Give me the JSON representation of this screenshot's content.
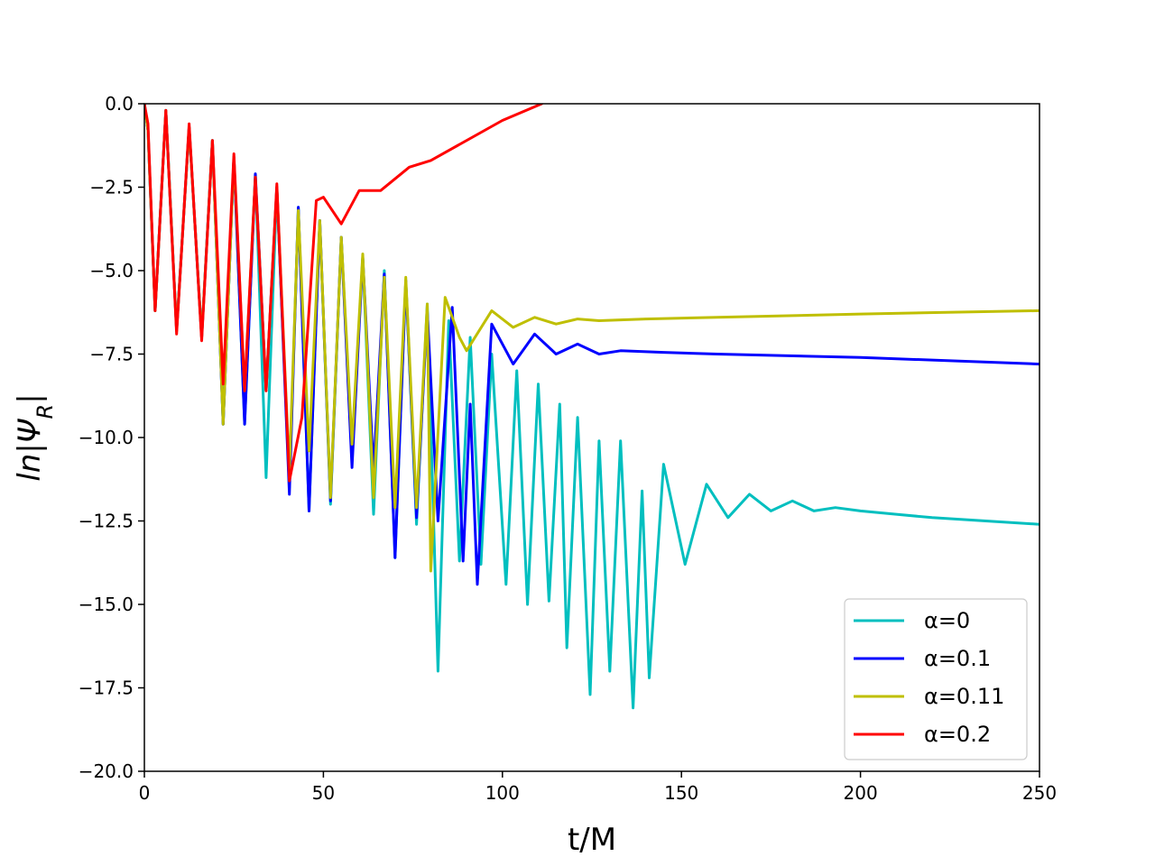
{
  "chart_data": {
    "type": "line",
    "xlabel": "t/M",
    "ylabel": "ln|Ψ_R|",
    "xlim": [
      0,
      250
    ],
    "ylim": [
      -20,
      0
    ],
    "xticks": [
      "0",
      "50",
      "100",
      "150",
      "200",
      "250"
    ],
    "yticks": [
      "0.0",
      "−2.5",
      "−5.0",
      "−7.5",
      "−10.0",
      "−12.5",
      "−15.0",
      "−17.5",
      "−20.0"
    ],
    "grid": false,
    "legend_position": "lower-right",
    "series": [
      {
        "name": "α=0",
        "color": "#00bfbf",
        "points": [
          [
            0,
            0
          ],
          [
            1,
            -0.8
          ],
          [
            3,
            -6.2
          ],
          [
            6,
            -0.2
          ],
          [
            9,
            -6.8
          ],
          [
            12.5,
            -0.7
          ],
          [
            16,
            -7.0
          ],
          [
            19,
            -1.1
          ],
          [
            22,
            -9.6
          ],
          [
            25,
            -1.6
          ],
          [
            28,
            -9.6
          ],
          [
            31,
            -2.1
          ],
          [
            34,
            -11.2
          ],
          [
            37,
            -2.5
          ],
          [
            40.5,
            -11.5
          ],
          [
            43,
            -3.1
          ],
          [
            46,
            -12.2
          ],
          [
            49,
            -3.5
          ],
          [
            52,
            -12.0
          ],
          [
            55,
            -4.0
          ],
          [
            58,
            -10.6
          ],
          [
            61,
            -4.6
          ],
          [
            64,
            -12.3
          ],
          [
            67,
            -5.0
          ],
          [
            70,
            -13.6
          ],
          [
            73,
            -5.3
          ],
          [
            76,
            -12.6
          ],
          [
            79,
            -6.0
          ],
          [
            82,
            -17.0
          ],
          [
            85,
            -6.5
          ],
          [
            88,
            -13.7
          ],
          [
            91,
            -7.0
          ],
          [
            94,
            -13.8
          ],
          [
            97,
            -7.5
          ],
          [
            101,
            -14.4
          ],
          [
            104,
            -8.0
          ],
          [
            107,
            -15.0
          ],
          [
            110,
            -8.4
          ],
          [
            113,
            -14.9
          ],
          [
            116,
            -9.0
          ],
          [
            118,
            -16.3
          ],
          [
            121,
            -9.4
          ],
          [
            124.5,
            -17.7
          ],
          [
            127,
            -10.1
          ],
          [
            130,
            -17.0
          ],
          [
            133,
            -10.1
          ],
          [
            136.5,
            -18.1
          ],
          [
            139,
            -11.6
          ],
          [
            141,
            -17.2
          ],
          [
            145,
            -10.8
          ],
          [
            151,
            -13.8
          ],
          [
            157,
            -11.4
          ],
          [
            163,
            -12.4
          ],
          [
            169,
            -11.7
          ],
          [
            175,
            -12.2
          ],
          [
            181,
            -11.9
          ],
          [
            187,
            -12.2
          ],
          [
            193,
            -12.1
          ],
          [
            200,
            -12.2
          ],
          [
            210,
            -12.3
          ],
          [
            220,
            -12.4
          ],
          [
            235,
            -12.5
          ],
          [
            250,
            -12.6
          ]
        ]
      },
      {
        "name": "α=0.1",
        "color": "#0000ff",
        "points": [
          [
            0,
            0
          ],
          [
            1,
            -0.8
          ],
          [
            3,
            -6.2
          ],
          [
            6,
            -0.2
          ],
          [
            9,
            -6.8
          ],
          [
            12.5,
            -0.7
          ],
          [
            16,
            -7.0
          ],
          [
            19,
            -1.1
          ],
          [
            22,
            -9.6
          ],
          [
            25,
            -1.6
          ],
          [
            28,
            -9.6
          ],
          [
            31,
            -2.1
          ],
          [
            34,
            -8.6
          ],
          [
            37,
            -2.5
          ],
          [
            40.5,
            -11.7
          ],
          [
            43,
            -3.1
          ],
          [
            46,
            -12.2
          ],
          [
            49,
            -3.5
          ],
          [
            52,
            -11.9
          ],
          [
            55,
            -4.0
          ],
          [
            58,
            -10.9
          ],
          [
            61,
            -4.6
          ],
          [
            64,
            -11.0
          ],
          [
            67,
            -5.1
          ],
          [
            70,
            -13.6
          ],
          [
            73,
            -5.3
          ],
          [
            76,
            -12.4
          ],
          [
            79,
            -6.2
          ],
          [
            82,
            -12.5
          ],
          [
            86,
            -6.1
          ],
          [
            89,
            -13.7
          ],
          [
            91,
            -9.0
          ],
          [
            93,
            -14.4
          ],
          [
            97,
            -6.6
          ],
          [
            103,
            -7.8
          ],
          [
            109,
            -6.9
          ],
          [
            115,
            -7.5
          ],
          [
            121,
            -7.2
          ],
          [
            127,
            -7.5
          ],
          [
            133,
            -7.4
          ],
          [
            145,
            -7.45
          ],
          [
            160,
            -7.5
          ],
          [
            200,
            -7.6
          ],
          [
            250,
            -7.8
          ]
        ]
      },
      {
        "name": "α=0.11",
        "color": "#bfbf00",
        "points": [
          [
            0,
            0
          ],
          [
            1,
            -0.8
          ],
          [
            3,
            -6.2
          ],
          [
            6,
            -0.2
          ],
          [
            9,
            -6.8
          ],
          [
            12.5,
            -0.7
          ],
          [
            16,
            -7.0
          ],
          [
            19,
            -1.1
          ],
          [
            22,
            -9.6
          ],
          [
            25,
            -1.6
          ],
          [
            28,
            -8.6
          ],
          [
            31,
            -2.2
          ],
          [
            34,
            -8.6
          ],
          [
            37,
            -2.5
          ],
          [
            40.5,
            -11.0
          ],
          [
            43,
            -3.2
          ],
          [
            46,
            -10.4
          ],
          [
            49,
            -3.5
          ],
          [
            52,
            -11.8
          ],
          [
            55,
            -4.0
          ],
          [
            58,
            -10.2
          ],
          [
            61,
            -4.5
          ],
          [
            64,
            -11.8
          ],
          [
            67,
            -5.2
          ],
          [
            70,
            -12.1
          ],
          [
            73,
            -5.2
          ],
          [
            76,
            -12.1
          ],
          [
            79,
            -6.0
          ],
          [
            80,
            -14.0
          ],
          [
            84,
            -5.8
          ],
          [
            88,
            -7.0
          ],
          [
            90,
            -7.4
          ],
          [
            97,
            -6.2
          ],
          [
            103,
            -6.7
          ],
          [
            109,
            -6.4
          ],
          [
            115,
            -6.6
          ],
          [
            121,
            -6.45
          ],
          [
            127,
            -6.5
          ],
          [
            140,
            -6.45
          ],
          [
            160,
            -6.4
          ],
          [
            200,
            -6.3
          ],
          [
            250,
            -6.2
          ]
        ]
      },
      {
        "name": "α=0.2",
        "color": "#ff0000",
        "points": [
          [
            0,
            0
          ],
          [
            1,
            -0.6
          ],
          [
            3,
            -6.2
          ],
          [
            6,
            -0.2
          ],
          [
            9,
            -6.9
          ],
          [
            12.5,
            -0.6
          ],
          [
            16,
            -7.1
          ],
          [
            19,
            -1.1
          ],
          [
            22,
            -8.4
          ],
          [
            25,
            -1.5
          ],
          [
            28,
            -8.6
          ],
          [
            31,
            -2.2
          ],
          [
            34,
            -8.6
          ],
          [
            37,
            -2.4
          ],
          [
            40.5,
            -11.3
          ],
          [
            44,
            -9.4
          ],
          [
            48,
            -2.9
          ],
          [
            50,
            -2.8
          ],
          [
            55,
            -3.6
          ],
          [
            60,
            -2.6
          ],
          [
            66,
            -2.6
          ],
          [
            74,
            -1.9
          ],
          [
            80,
            -1.7
          ],
          [
            100,
            -0.5
          ],
          [
            111,
            0
          ]
        ]
      }
    ]
  }
}
